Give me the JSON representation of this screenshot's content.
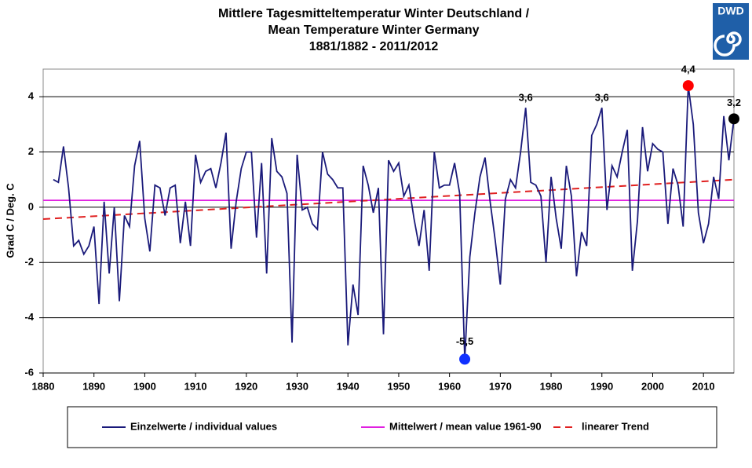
{
  "chart_data": {
    "type": "line",
    "title": [
      "Mittlere Tagesmitteltemperatur Winter  Deutschland /",
      "Mean Temperature Winter  Germany",
      "1881/1882 - 2011/2012"
    ],
    "logo": "DWD",
    "y_label": "Grad C / Deg. C",
    "xlim": [
      1880,
      2016
    ],
    "xticks": [
      1880,
      1890,
      1900,
      1910,
      1920,
      1930,
      1940,
      1950,
      1960,
      1970,
      1980,
      1990,
      2000,
      2010
    ],
    "ylim": [
      -6,
      5
    ],
    "yticks": [
      -6,
      -4,
      -2,
      0,
      2,
      4
    ],
    "grid": true,
    "series": [
      {
        "name": "Einzelwerte / individual values",
        "color": "#1a1a7a",
        "dash": false,
        "x": [
          1882,
          1883,
          1884,
          1885,
          1886,
          1887,
          1888,
          1889,
          1890,
          1891,
          1892,
          1893,
          1894,
          1895,
          1896,
          1897,
          1898,
          1899,
          1900,
          1901,
          1902,
          1903,
          1904,
          1905,
          1906,
          1907,
          1908,
          1909,
          1910,
          1911,
          1912,
          1913,
          1914,
          1915,
          1916,
          1917,
          1918,
          1919,
          1920,
          1921,
          1922,
          1923,
          1924,
          1925,
          1926,
          1927,
          1928,
          1929,
          1930,
          1931,
          1932,
          1933,
          1934,
          1935,
          1936,
          1937,
          1938,
          1939,
          1940,
          1941,
          1942,
          1943,
          1944,
          1945,
          1946,
          1947,
          1948,
          1949,
          1950,
          1951,
          1952,
          1953,
          1954,
          1955,
          1956,
          1957,
          1958,
          1959,
          1960,
          1961,
          1962,
          1963,
          1964,
          1965,
          1966,
          1967,
          1968,
          1969,
          1970,
          1971,
          1972,
          1973,
          1974,
          1975,
          1976,
          1977,
          1978,
          1979,
          1980,
          1981,
          1982,
          1983,
          1984,
          1985,
          1986,
          1987,
          1988,
          1989,
          1990,
          1991,
          1992,
          1993,
          1994,
          1995,
          1996,
          1997,
          1998,
          1999,
          2000,
          2001,
          2002,
          2003,
          2004,
          2005,
          2006,
          2007,
          2008,
          2009,
          2010,
          2011,
          2012,
          2013,
          2014,
          2015,
          2016
        ],
        "values": [
          1.0,
          0.9,
          2.2,
          0.7,
          -1.4,
          -1.2,
          -1.7,
          -1.4,
          -0.7,
          -3.5,
          0.2,
          -2.4,
          0.0,
          -3.4,
          -0.3,
          -0.7,
          1.5,
          2.4,
          -0.4,
          -1.6,
          0.8,
          0.7,
          -0.3,
          0.7,
          0.8,
          -1.3,
          0.2,
          -1.4,
          1.9,
          0.9,
          1.3,
          1.4,
          0.7,
          1.6,
          2.7,
          -1.5,
          0.2,
          1.4,
          2.0,
          2.0,
          -1.1,
          1.6,
          -2.4,
          2.5,
          1.3,
          1.1,
          0.5,
          -4.9,
          1.9,
          -0.1,
          0.0,
          -0.6,
          -0.8,
          2.0,
          1.2,
          1.0,
          0.7,
          0.7,
          -5.0,
          -2.8,
          -3.9,
          1.5,
          0.8,
          -0.2,
          0.7,
          -4.6,
          1.7,
          1.3,
          1.6,
          0.4,
          0.8,
          -0.4,
          -1.4,
          -0.1,
          -2.3,
          2.0,
          0.7,
          0.8,
          0.8,
          1.6,
          0.5,
          -5.5,
          -1.8,
          -0.2,
          1.1,
          1.8,
          0.2,
          -1.2,
          -2.8,
          0.3,
          1.0,
          0.7,
          2.0,
          3.6,
          0.9,
          0.8,
          0.4,
          -2.0,
          1.1,
          -0.4,
          -1.5,
          1.5,
          0.4,
          -2.5,
          -0.9,
          -1.4,
          2.6,
          3.0,
          3.6,
          -0.1,
          1.5,
          1.1,
          2.0,
          2.8,
          -2.3,
          -0.5,
          2.9,
          1.3,
          2.3,
          2.1,
          2.0,
          -0.6,
          1.4,
          0.8,
          -0.7,
          4.4,
          3.0,
          -0.2,
          -1.3,
          -0.6,
          1.1,
          0.3,
          3.3,
          1.7,
          3.2
        ]
      },
      {
        "name": "Mittelwert / mean value 1961-90",
        "color": "#e020e0",
        "dash": false,
        "x": [
          1880,
          2016
        ],
        "values": [
          0.25,
          0.25
        ]
      },
      {
        "name": "linearer Trend",
        "color": "#e02020",
        "dash": true,
        "x": [
          1880,
          2016
        ],
        "values": [
          -0.43,
          1.0
        ]
      }
    ],
    "annotations": [
      {
        "x": 1975,
        "value": 3.6,
        "label": "3,6"
      },
      {
        "x": 1990,
        "value": 3.6,
        "label": "3,6"
      },
      {
        "x": 2007,
        "value": 4.4,
        "label": "4,4",
        "color": "#ff0000"
      },
      {
        "x": 1963,
        "value": -5.5,
        "label": "-5,5",
        "color": "#1030ff"
      },
      {
        "x": 2016,
        "value": 3.2,
        "label": "3,2",
        "color": "#000000"
      }
    ]
  }
}
